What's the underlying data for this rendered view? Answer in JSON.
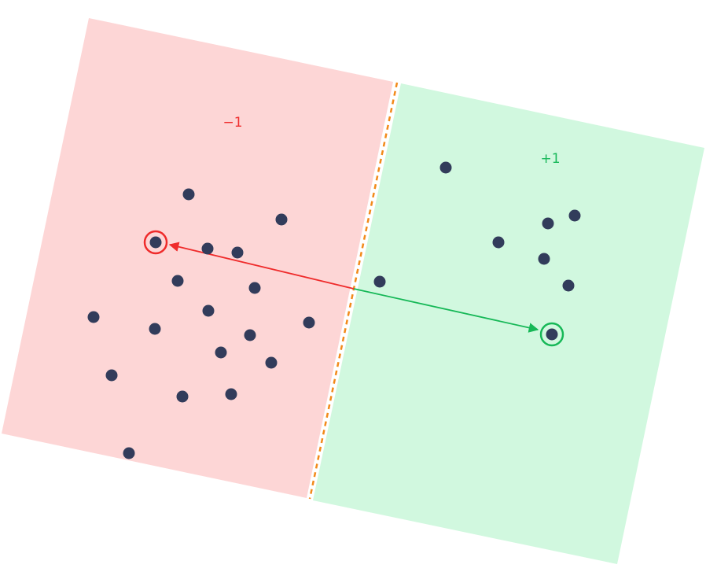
{
  "regions": {
    "negative": {
      "label": "−1",
      "fill": "#fdd6d6",
      "text_color": "#ef3030"
    },
    "positive": {
      "label": "+1",
      "fill": "#d1f8df",
      "text_color": "#18b85a"
    }
  },
  "boundary": {
    "color": "#f28a1a",
    "style": "dashed"
  },
  "points": {
    "color": "#323c5b"
  },
  "highlight": {
    "negative_color": "#ef2b2b",
    "positive_color": "#16b857"
  }
}
